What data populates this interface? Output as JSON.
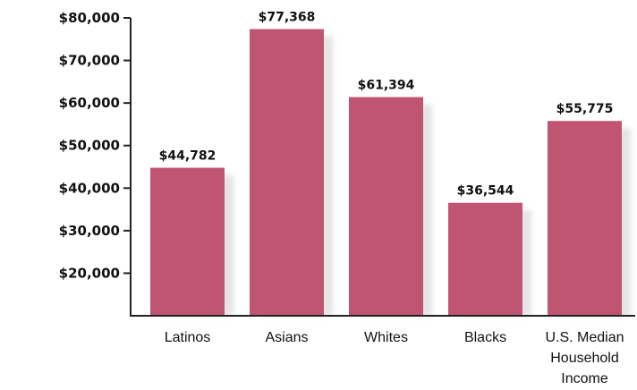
{
  "colors": {
    "bar": "#C05573",
    "bar_shadow": "#E4E4E4",
    "axis": "#222222",
    "text": "#111111"
  },
  "chart_data": {
    "type": "bar",
    "title": "",
    "xlabel": "",
    "ylabel": "",
    "categories": [
      "Latinos",
      "Asians",
      "Whites",
      "Blacks",
      "U.S. Median Household Income"
    ],
    "category_label_lines": [
      [
        "Latinos"
      ],
      [
        "Asians"
      ],
      [
        "Whites"
      ],
      [
        "Blacks"
      ],
      [
        "U.S. Median",
        "Household",
        "Income"
      ]
    ],
    "values": [
      44782,
      77368,
      61394,
      36544,
      55775
    ],
    "data_labels": [
      "$44,782",
      "$77,368",
      "$61,394",
      "$36,544",
      "$55,775"
    ],
    "ylim": [
      10000,
      80000
    ],
    "yticks": [
      20000,
      30000,
      40000,
      50000,
      60000,
      70000,
      80000
    ],
    "ytick_labels": [
      "$20,000",
      "$30,000",
      "$40,000",
      "$50,000",
      "$60,000",
      "$70,000",
      "$80,000"
    ],
    "grid": false,
    "legend": false
  }
}
